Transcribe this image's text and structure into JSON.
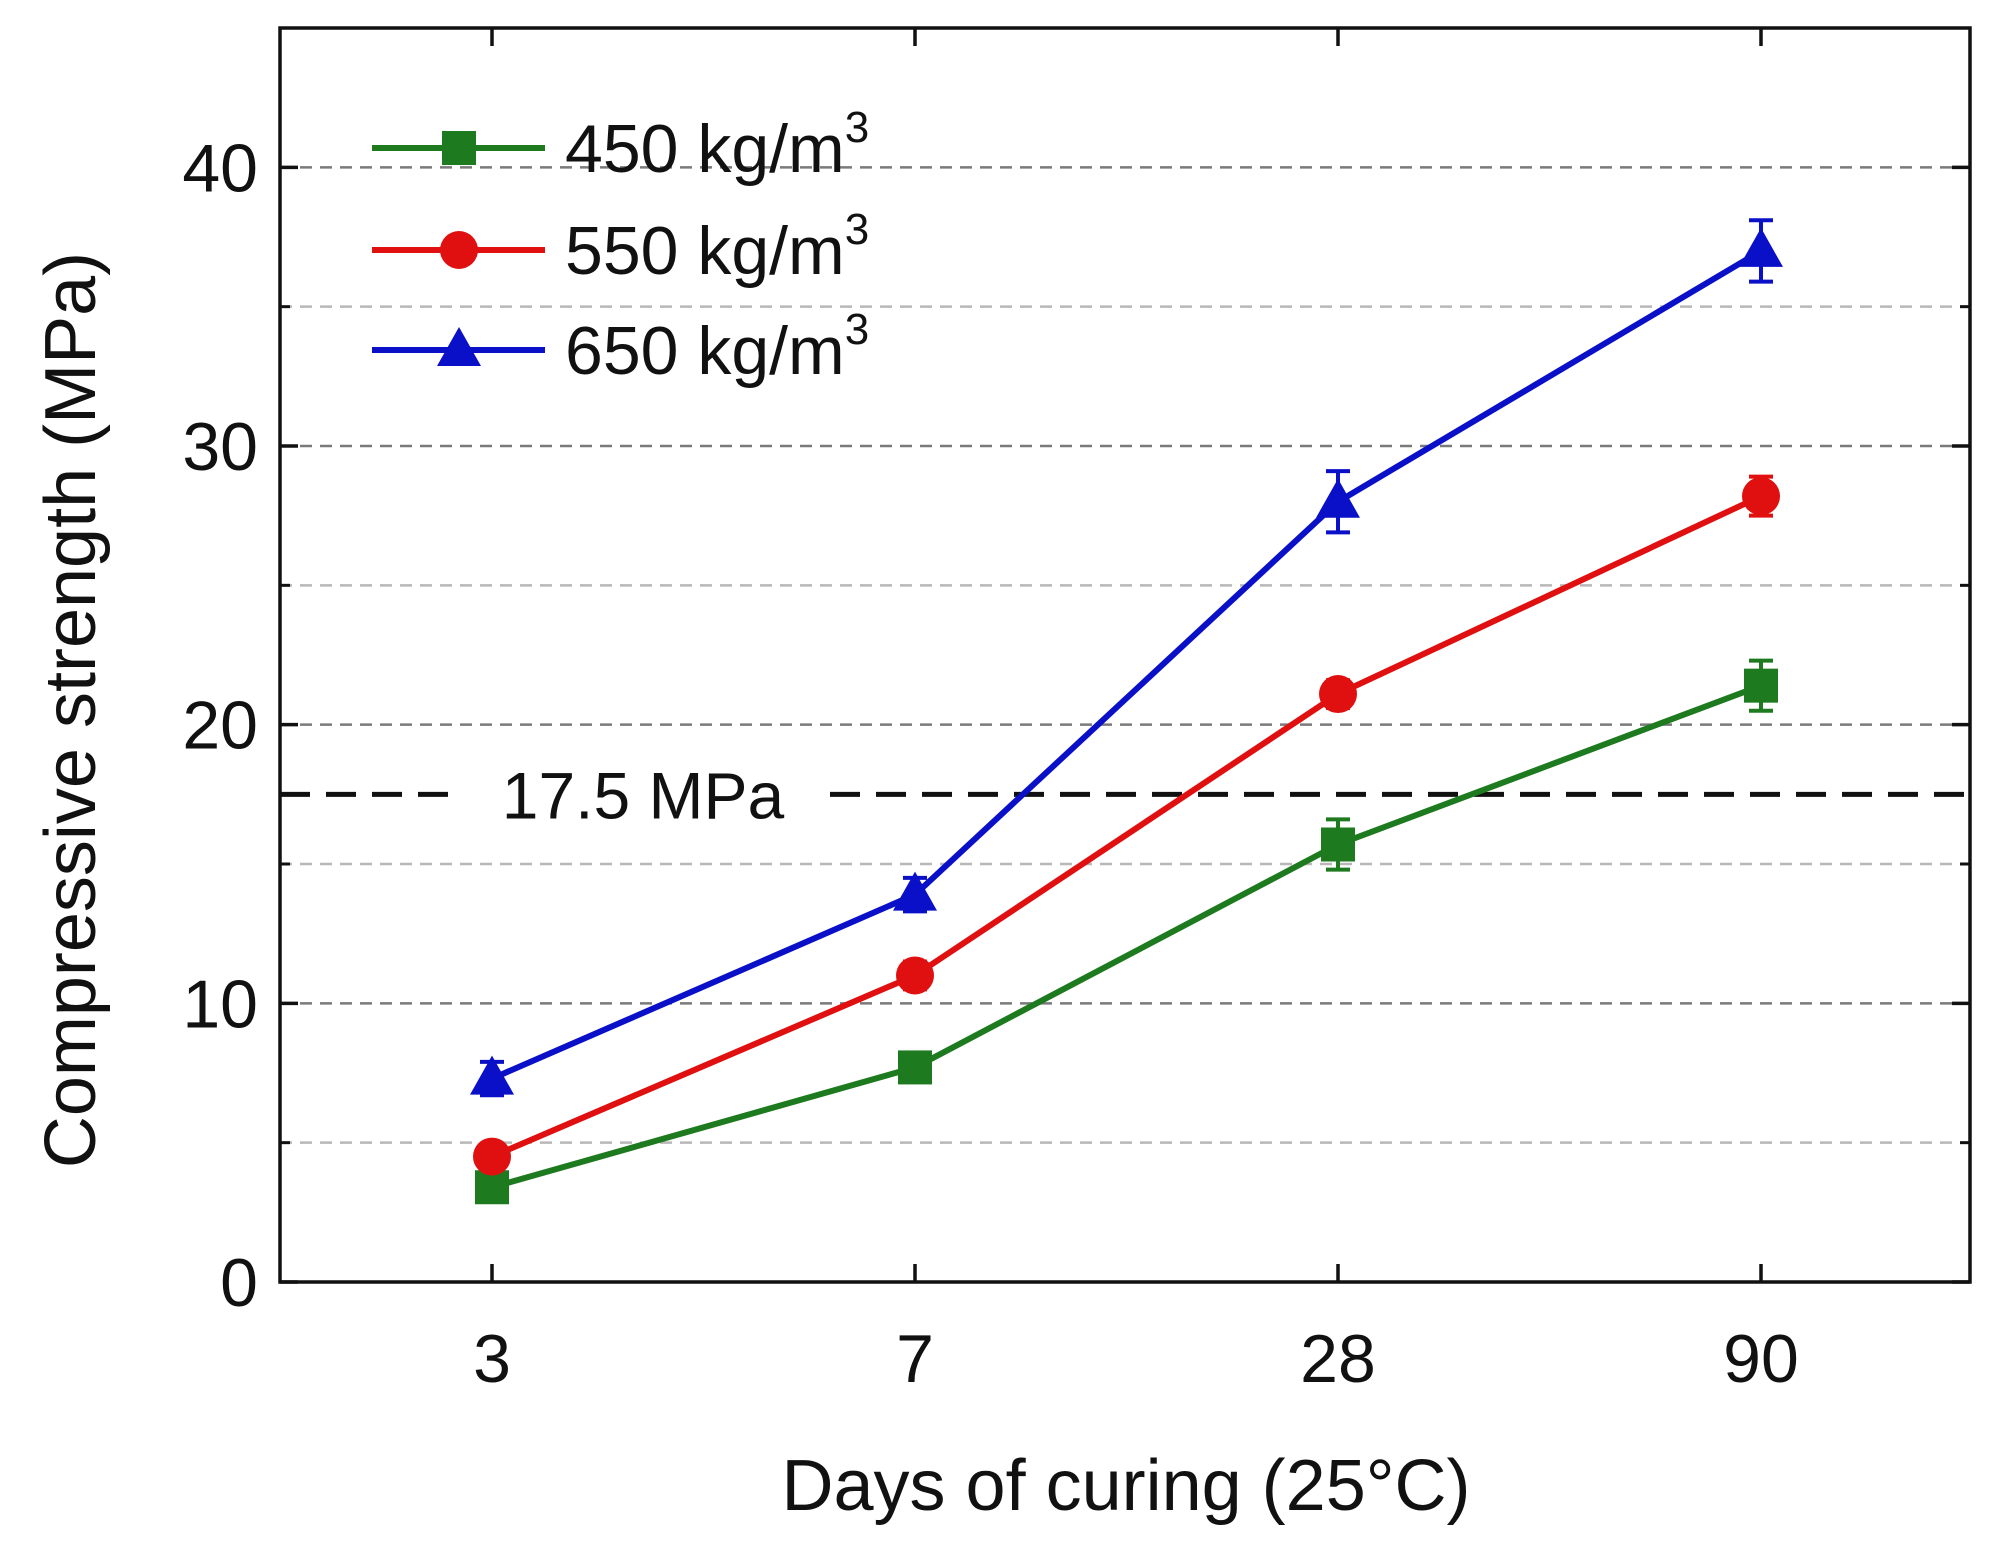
{
  "chart_data": {
    "type": "line",
    "title": "",
    "xlabel": "Days of curing (25°C)",
    "ylabel": "Compressive strength (MPa)",
    "categories": [
      "3",
      "7",
      "28",
      "90"
    ],
    "ylim": [
      0,
      45
    ],
    "yticks": [
      0,
      10,
      20,
      30,
      40
    ],
    "minor_gridlines": [
      5,
      15,
      25,
      35
    ],
    "major_gridlines": [
      10,
      20,
      30,
      40
    ],
    "grid": true,
    "legend_position": "top-left",
    "reference_line": {
      "value": 17.5,
      "label": "17.5 MPa",
      "color": "#111111"
    },
    "series": [
      {
        "name": "450 kg/m",
        "superscript": "3",
        "color": "#1e7a1e",
        "marker": "square",
        "values": [
          3.4,
          7.7,
          15.7,
          21.4
        ],
        "errors": [
          0.3,
          0.4,
          0.9,
          0.9
        ]
      },
      {
        "name": "550 kg/m",
        "superscript": "3",
        "color": "#e01010",
        "marker": "circle",
        "values": [
          4.5,
          11.0,
          21.1,
          28.2
        ],
        "errors": [
          0.3,
          0.5,
          0.5,
          0.7
        ]
      },
      {
        "name": "650 kg/m",
        "superscript": "3",
        "color": "#0a10c8",
        "marker": "triangle",
        "values": [
          7.3,
          13.9,
          28.0,
          37.0
        ],
        "errors": [
          0.6,
          0.6,
          1.1,
          1.1
        ]
      }
    ]
  }
}
